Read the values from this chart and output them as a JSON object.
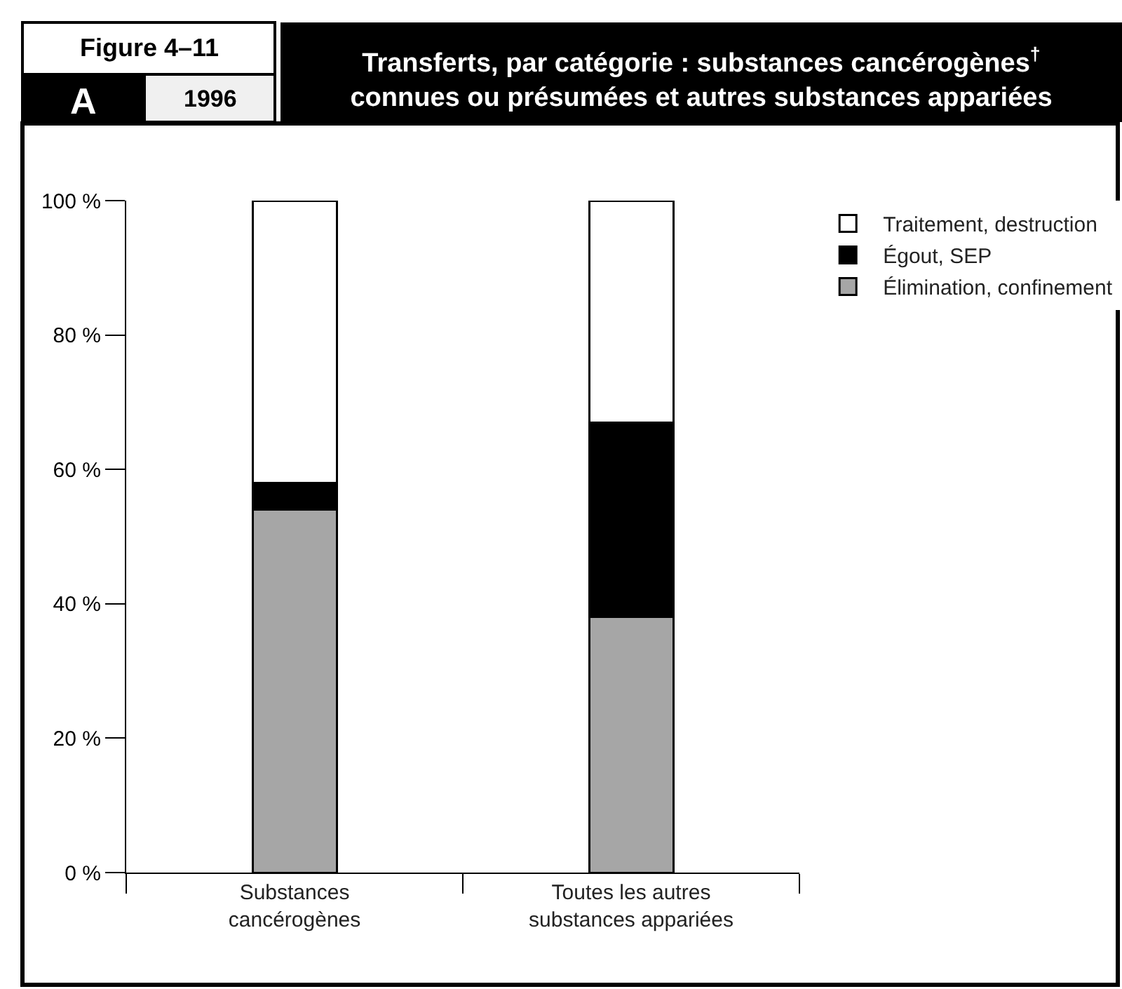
{
  "chart_data": {
    "type": "bar",
    "stacked": true,
    "title": "Transferts, par catégorie : substances cancérogènes$^{†}$\nconnues ou présumées et autres substances appariées",
    "annotations": [
      "Figure 4–11",
      "A",
      "1996"
    ],
    "categories": [
      "Substances\ncancérogènes",
      "Toutes les autres\nsubstances appariées"
    ],
    "series": [
      {
        "name": "Élimination, confinement",
        "color": "#a6a6a6",
        "values": [
          54,
          38
        ]
      },
      {
        "name": "Égout, SEP",
        "color": "#000000",
        "values": [
          4,
          29
        ]
      },
      {
        "name": "Traitement, destruction",
        "color": "#ffffff",
        "values": [
          42,
          33
        ]
      }
    ],
    "ylim": [
      0,
      100
    ],
    "yticks": [
      {
        "value": 0,
        "label": "0 %"
      },
      {
        "value": 20,
        "label": "20 %"
      },
      {
        "value": 40,
        "label": "40 %"
      },
      {
        "value": 60,
        "label": "60 %"
      },
      {
        "value": 80,
        "label": "80 %"
      },
      {
        "value": 100,
        "label": "100 %"
      }
    ],
    "legend": "top right"
  }
}
